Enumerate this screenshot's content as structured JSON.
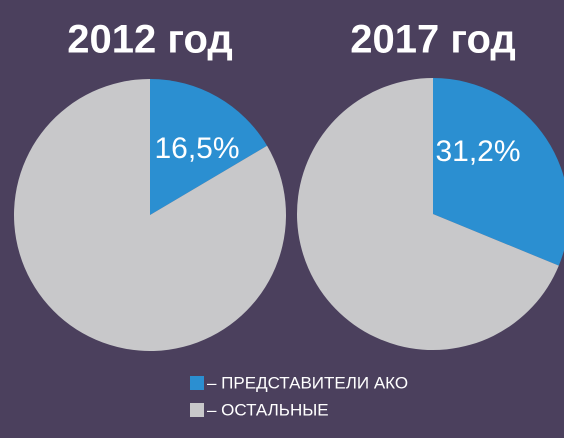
{
  "chart_data": [
    {
      "type": "pie",
      "title": "2012 год",
      "values": [
        16.5,
        83.5
      ],
      "value_labels": [
        "16,5%",
        null
      ],
      "colors": [
        "#2b8fd1",
        "#c8c8ca"
      ]
    },
    {
      "type": "pie",
      "title": "2017 год",
      "values": [
        31.2,
        68.8
      ],
      "value_labels": [
        "31,2%",
        null
      ],
      "colors": [
        "#2b8fd1",
        "#c8c8ca"
      ]
    }
  ],
  "legend": {
    "items": [
      {
        "label": "– ПРЕДСТАВИТЕЛИ АКО",
        "color": "#2b8fd1"
      },
      {
        "label": "– ОСТАЛЬНЫЕ",
        "color": "#c8c8ca"
      }
    ]
  }
}
